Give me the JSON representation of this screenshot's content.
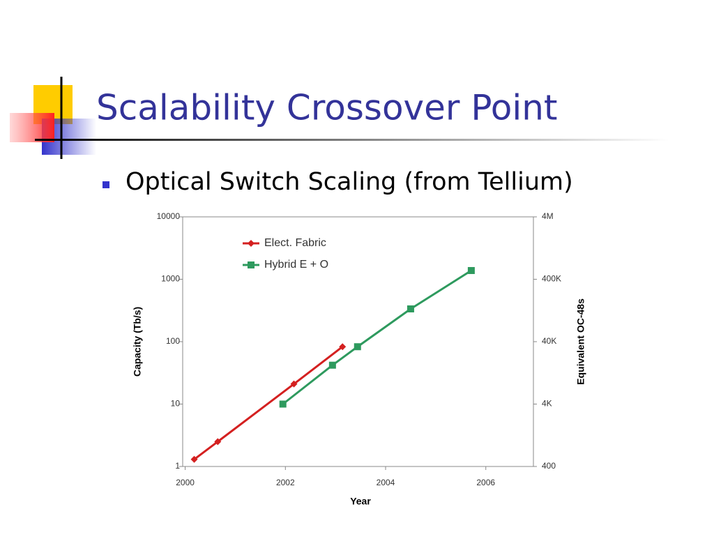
{
  "slide": {
    "title": "Scalability Crossover Point",
    "bullet": "Optical Switch Scaling (from Tellium)"
  },
  "chart_data": {
    "type": "line",
    "x_label": "Year",
    "y_label": "Capacity (Tb/s)",
    "y2_label": "Equivalent OC-48s",
    "xlim": [
      1999.95,
      2006.95
    ],
    "xticks": [
      2000,
      2002,
      2004,
      2006
    ],
    "ylim": [
      1,
      10000
    ],
    "yticks": [
      1,
      10,
      100,
      1000,
      10000
    ],
    "log_y": true,
    "y2lim": [
      400,
      4000000
    ],
    "y2ticks": [
      400,
      {
        "value": 4000,
        "label": "4K"
      },
      {
        "value": 40000,
        "label": "40K"
      },
      {
        "value": 400000,
        "label": "400K"
      },
      {
        "value": 4000000,
        "label": "4M"
      }
    ],
    "grid": false,
    "legend": "upper left",
    "series": [
      {
        "name": "Elect. Fabric",
        "color": "#d42020",
        "marker": "diamond",
        "x": [
          2000.18,
          2000.65,
          2002.17,
          2003.14
        ],
        "values": [
          1.3,
          2.5,
          21,
          83
        ]
      },
      {
        "name": "Hybrid E + O",
        "color": "#2e9a5e",
        "marker": "square",
        "x": [
          2001.95,
          2002.94,
          2003.44,
          2004.5,
          2005.71
        ],
        "values": [
          10,
          42,
          83,
          335,
          1380
        ]
      }
    ]
  }
}
